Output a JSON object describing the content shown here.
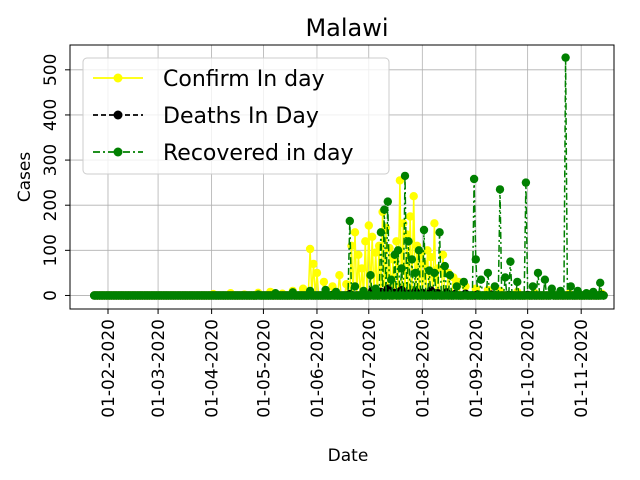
{
  "chart_data": {
    "type": "line",
    "title": "Malawi",
    "xlabel": "Date",
    "ylabel": "Cases",
    "x_range": [
      "2020-01-10",
      "2020-11-20"
    ],
    "ylim": [
      -30,
      555
    ],
    "grid": true,
    "legend_position": "top-left",
    "x_ticks": [
      "01-02-2020",
      "01-03-2020",
      "01-04-2020",
      "01-05-2020",
      "01-06-2020",
      "01-07-2020",
      "01-08-2020",
      "01-09-2020",
      "01-10-2020",
      "01-11-2020"
    ],
    "y_ticks": [
      "0",
      "100",
      "200",
      "300",
      "400",
      "500"
    ],
    "series": [
      {
        "name": "Confirm In day",
        "color": "#ffff00",
        "style": "solid",
        "points": [
          [
            "2020-04-02",
            3
          ],
          [
            "2020-04-12",
            5
          ],
          [
            "2020-04-20",
            2
          ],
          [
            "2020-04-28",
            6
          ],
          [
            "2020-05-05",
            8
          ],
          [
            "2020-05-12",
            4
          ],
          [
            "2020-05-18",
            10
          ],
          [
            "2020-05-24",
            15
          ],
          [
            "2020-05-28",
            103
          ],
          [
            "2020-05-30",
            70
          ],
          [
            "2020-06-01",
            50
          ],
          [
            "2020-06-05",
            30
          ],
          [
            "2020-06-10",
            20
          ],
          [
            "2020-06-14",
            45
          ],
          [
            "2020-06-18",
            25
          ],
          [
            "2020-06-21",
            110
          ],
          [
            "2020-06-23",
            140
          ],
          [
            "2020-06-25",
            90
          ],
          [
            "2020-06-27",
            60
          ],
          [
            "2020-06-29",
            120
          ],
          [
            "2020-07-01",
            155
          ],
          [
            "2020-07-03",
            130
          ],
          [
            "2020-07-05",
            95
          ],
          [
            "2020-07-07",
            110
          ],
          [
            "2020-07-09",
            185
          ],
          [
            "2020-07-11",
            150
          ],
          [
            "2020-07-13",
            105
          ],
          [
            "2020-07-15",
            80
          ],
          [
            "2020-07-17",
            120
          ],
          [
            "2020-07-19",
            255
          ],
          [
            "2020-07-21",
            160
          ],
          [
            "2020-07-23",
            135
          ],
          [
            "2020-07-25",
            175
          ],
          [
            "2020-07-27",
            220
          ],
          [
            "2020-07-29",
            110
          ],
          [
            "2020-07-31",
            90
          ],
          [
            "2020-08-02",
            70
          ],
          [
            "2020-08-04",
            100
          ],
          [
            "2020-08-06",
            85
          ],
          [
            "2020-08-08",
            160
          ],
          [
            "2020-08-10",
            60
          ],
          [
            "2020-08-13",
            90
          ],
          [
            "2020-08-16",
            50
          ],
          [
            "2020-08-19",
            40
          ],
          [
            "2020-08-22",
            30
          ],
          [
            "2020-08-26",
            20
          ],
          [
            "2020-09-01",
            15
          ],
          [
            "2020-09-08",
            12
          ],
          [
            "2020-09-15",
            10
          ],
          [
            "2020-09-25",
            8
          ],
          [
            "2020-10-05",
            6
          ],
          [
            "2020-10-15",
            5
          ],
          [
            "2020-10-25",
            4
          ],
          [
            "2020-11-05",
            3
          ],
          [
            "2020-11-13",
            4
          ]
        ]
      },
      {
        "name": "Deaths In Day",
        "color": "#000000",
        "style": "dashed",
        "points": [
          [
            "2020-06-10",
            1
          ],
          [
            "2020-06-20",
            3
          ],
          [
            "2020-06-28",
            5
          ],
          [
            "2020-07-03",
            10
          ],
          [
            "2020-07-08",
            8
          ],
          [
            "2020-07-12",
            15
          ],
          [
            "2020-07-16",
            6
          ],
          [
            "2020-07-20",
            12
          ],
          [
            "2020-07-24",
            4
          ],
          [
            "2020-07-28",
            9
          ],
          [
            "2020-08-01",
            6
          ],
          [
            "2020-08-06",
            11
          ],
          [
            "2020-08-10",
            5
          ],
          [
            "2020-08-15",
            7
          ],
          [
            "2020-08-20",
            3
          ],
          [
            "2020-08-26",
            4
          ],
          [
            "2020-09-02",
            2
          ],
          [
            "2020-09-10",
            2
          ],
          [
            "2020-09-20",
            1
          ],
          [
            "2020-10-01",
            1
          ],
          [
            "2020-10-15",
            1
          ],
          [
            "2020-11-01",
            0
          ],
          [
            "2020-11-13",
            1
          ]
        ]
      },
      {
        "name": "Recovered in day",
        "color": "#008000",
        "style": "dashdot",
        "points": [
          [
            "2020-04-28",
            2
          ],
          [
            "2020-05-08",
            5
          ],
          [
            "2020-05-18",
            7
          ],
          [
            "2020-05-28",
            10
          ],
          [
            "2020-06-06",
            12
          ],
          [
            "2020-06-12",
            8
          ],
          [
            "2020-06-20",
            165
          ],
          [
            "2020-06-23",
            20
          ],
          [
            "2020-06-28",
            10
          ],
          [
            "2020-07-02",
            45
          ],
          [
            "2020-07-05",
            15
          ],
          [
            "2020-07-08",
            140
          ],
          [
            "2020-07-10",
            190
          ],
          [
            "2020-07-12",
            208
          ],
          [
            "2020-07-14",
            35
          ],
          [
            "2020-07-16",
            90
          ],
          [
            "2020-07-18",
            100
          ],
          [
            "2020-07-20",
            60
          ],
          [
            "2020-07-22",
            265
          ],
          [
            "2020-07-24",
            120
          ],
          [
            "2020-07-26",
            80
          ],
          [
            "2020-07-28",
            50
          ],
          [
            "2020-07-30",
            100
          ],
          [
            "2020-08-02",
            145
          ],
          [
            "2020-08-05",
            55
          ],
          [
            "2020-08-08",
            50
          ],
          [
            "2020-08-11",
            140
          ],
          [
            "2020-08-14",
            65
          ],
          [
            "2020-08-17",
            45
          ],
          [
            "2020-08-21",
            20
          ],
          [
            "2020-08-25",
            30
          ],
          [
            "2020-08-31",
            258
          ],
          [
            "2020-09-01",
            80
          ],
          [
            "2020-09-04",
            35
          ],
          [
            "2020-09-08",
            50
          ],
          [
            "2020-09-12",
            20
          ],
          [
            "2020-09-15",
            235
          ],
          [
            "2020-09-18",
            40
          ],
          [
            "2020-09-21",
            75
          ],
          [
            "2020-09-25",
            30
          ],
          [
            "2020-09-30",
            250
          ],
          [
            "2020-10-04",
            20
          ],
          [
            "2020-10-07",
            50
          ],
          [
            "2020-10-11",
            35
          ],
          [
            "2020-10-15",
            15
          ],
          [
            "2020-10-20",
            10
          ],
          [
            "2020-10-23",
            527
          ],
          [
            "2020-10-26",
            20
          ],
          [
            "2020-10-30",
            10
          ],
          [
            "2020-11-04",
            5
          ],
          [
            "2020-11-08",
            8
          ],
          [
            "2020-11-12",
            28
          ]
        ]
      }
    ]
  }
}
